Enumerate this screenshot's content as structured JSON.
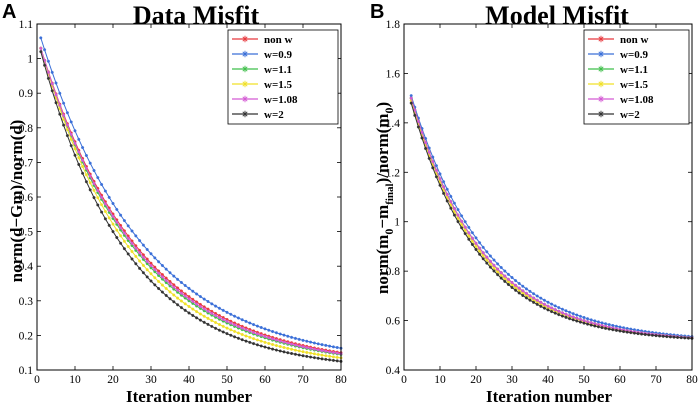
{
  "chart_data": [
    {
      "type": "line",
      "panel_label": "A",
      "title": "Data Misfit",
      "xlabel": "Iteration number",
      "ylabel": "norm(d−Gm)/norm(d)",
      "xlim": [
        0,
        80
      ],
      "ylim": [
        0.1,
        1.1
      ],
      "xticks": [
        "0",
        "10",
        "20",
        "30",
        "40",
        "50",
        "60",
        "70",
        "80"
      ],
      "yticks": [
        "0.1",
        "0.2",
        "0.3",
        "0.4",
        "0.5",
        "0.6",
        "0.7",
        "0.8",
        "0.9",
        "1",
        "1.1"
      ],
      "legend_position": "top-right",
      "x_range": [
        1,
        80
      ],
      "series": [
        {
          "name": "non w",
          "color": "#e8383d",
          "start": 1.03,
          "end": 0.15,
          "tau": 26
        },
        {
          "name": "w=0.9",
          "color": "#3a6fd8",
          "start": 1.06,
          "end": 0.163,
          "tau": 27
        },
        {
          "name": "w=1.1",
          "color": "#3fbf4a",
          "start": 1.03,
          "end": 0.145,
          "tau": 25
        },
        {
          "name": "w=1.5",
          "color": "#f0e028",
          "start": 1.03,
          "end": 0.135,
          "tau": 24
        },
        {
          "name": "w=1.08",
          "color": "#d45ad4",
          "start": 1.03,
          "end": 0.147,
          "tau": 25.5
        },
        {
          "name": "w=2",
          "color": "#333333",
          "start": 1.02,
          "end": 0.125,
          "tau": 23
        }
      ]
    },
    {
      "type": "line",
      "panel_label": "B",
      "title": "Model Misfit",
      "xlabel": "Iteration number",
      "ylabel_parts": {
        "pre": "norm(m",
        "sub0": "0",
        "mid": "−m",
        "subfinal": "final",
        "post": ")/norm(m",
        "sub0b": "0",
        "end": ")"
      },
      "xlim": [
        0,
        80
      ],
      "ylim": [
        0.4,
        1.8
      ],
      "xticks": [
        "0",
        "10",
        "20",
        "30",
        "40",
        "50",
        "60",
        "70",
        "80"
      ],
      "yticks": [
        "0.4",
        "0.6",
        "0.8",
        "1",
        "1.2",
        "1.4",
        "1.6",
        "1.8"
      ],
      "legend_position": "top-right",
      "x_range": [
        2,
        80
      ],
      "series": [
        {
          "name": "non w",
          "color": "#e8383d",
          "start": 1.5,
          "end": 0.53,
          "tau": 20
        },
        {
          "name": "w=0.9",
          "color": "#3a6fd8",
          "start": 1.51,
          "end": 0.535,
          "tau": 21
        },
        {
          "name": "w=1.1",
          "color": "#3fbf4a",
          "start": 1.5,
          "end": 0.53,
          "tau": 20
        },
        {
          "name": "w=1.5",
          "color": "#f0e028",
          "start": 1.49,
          "end": 0.53,
          "tau": 19.5
        },
        {
          "name": "w=1.08",
          "color": "#d45ad4",
          "start": 1.5,
          "end": 0.53,
          "tau": 20
        },
        {
          "name": "w=2",
          "color": "#333333",
          "start": 1.48,
          "end": 0.528,
          "tau": 19
        }
      ]
    }
  ]
}
